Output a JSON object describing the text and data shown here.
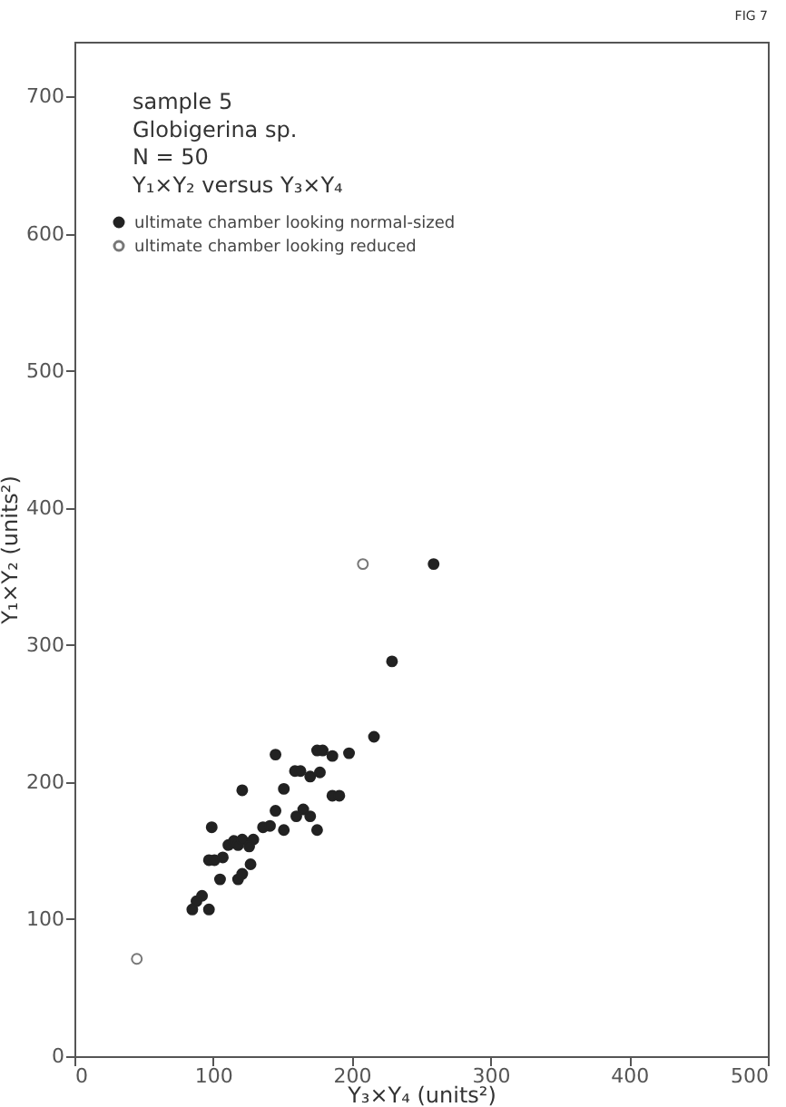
{
  "chart_data": {
    "type": "scatter",
    "xlabel": "Y₃×Y₄ (units²)",
    "ylabel": "Y₁×Y₂ (units²)",
    "annotations": [
      "sample 5",
      "Globigerina sp.",
      "N = 50",
      "Y₁×Y₂ versus Y₃×Y₄",
      "FIG 7"
    ],
    "xlim": [
      0,
      500
    ],
    "ylim": [
      0,
      740
    ],
    "xticks": [
      0,
      100,
      200,
      300,
      400,
      500
    ],
    "yticks": [
      0,
      100,
      200,
      300,
      400,
      500,
      600,
      700
    ],
    "grid": false,
    "legend": "top left",
    "marker": "circle",
    "series": [
      {
        "name": "ultimate chamber looking normal-sized",
        "color": "#222222",
        "x": [
          259,
          229,
          216,
          145,
          175,
          179,
          186,
          198,
          159,
          163,
          170,
          177,
          121,
          151,
          186,
          191,
          145,
          160,
          165,
          170,
          175,
          151,
          136,
          141,
          99,
          111,
          115,
          118,
          121,
          129,
          126,
          97,
          101,
          107,
          105,
          118,
          121,
          127,
          92,
          88,
          85,
          97
        ],
        "values": [
          359,
          288,
          233,
          220,
          223,
          223,
          219,
          221,
          208,
          208,
          204,
          207,
          194,
          195,
          190,
          190,
          179,
          175,
          180,
          175,
          165,
          165,
          167,
          168,
          167,
          154,
          157,
          154,
          158,
          158,
          153,
          143,
          143,
          145,
          129,
          129,
          133,
          140,
          117,
          113,
          107,
          107
        ]
      },
      {
        "name": "ultimate chamber looking reduced",
        "color": "#777777",
        "x": [
          208,
          45
        ],
        "values": [
          359,
          71
        ]
      }
    ]
  }
}
